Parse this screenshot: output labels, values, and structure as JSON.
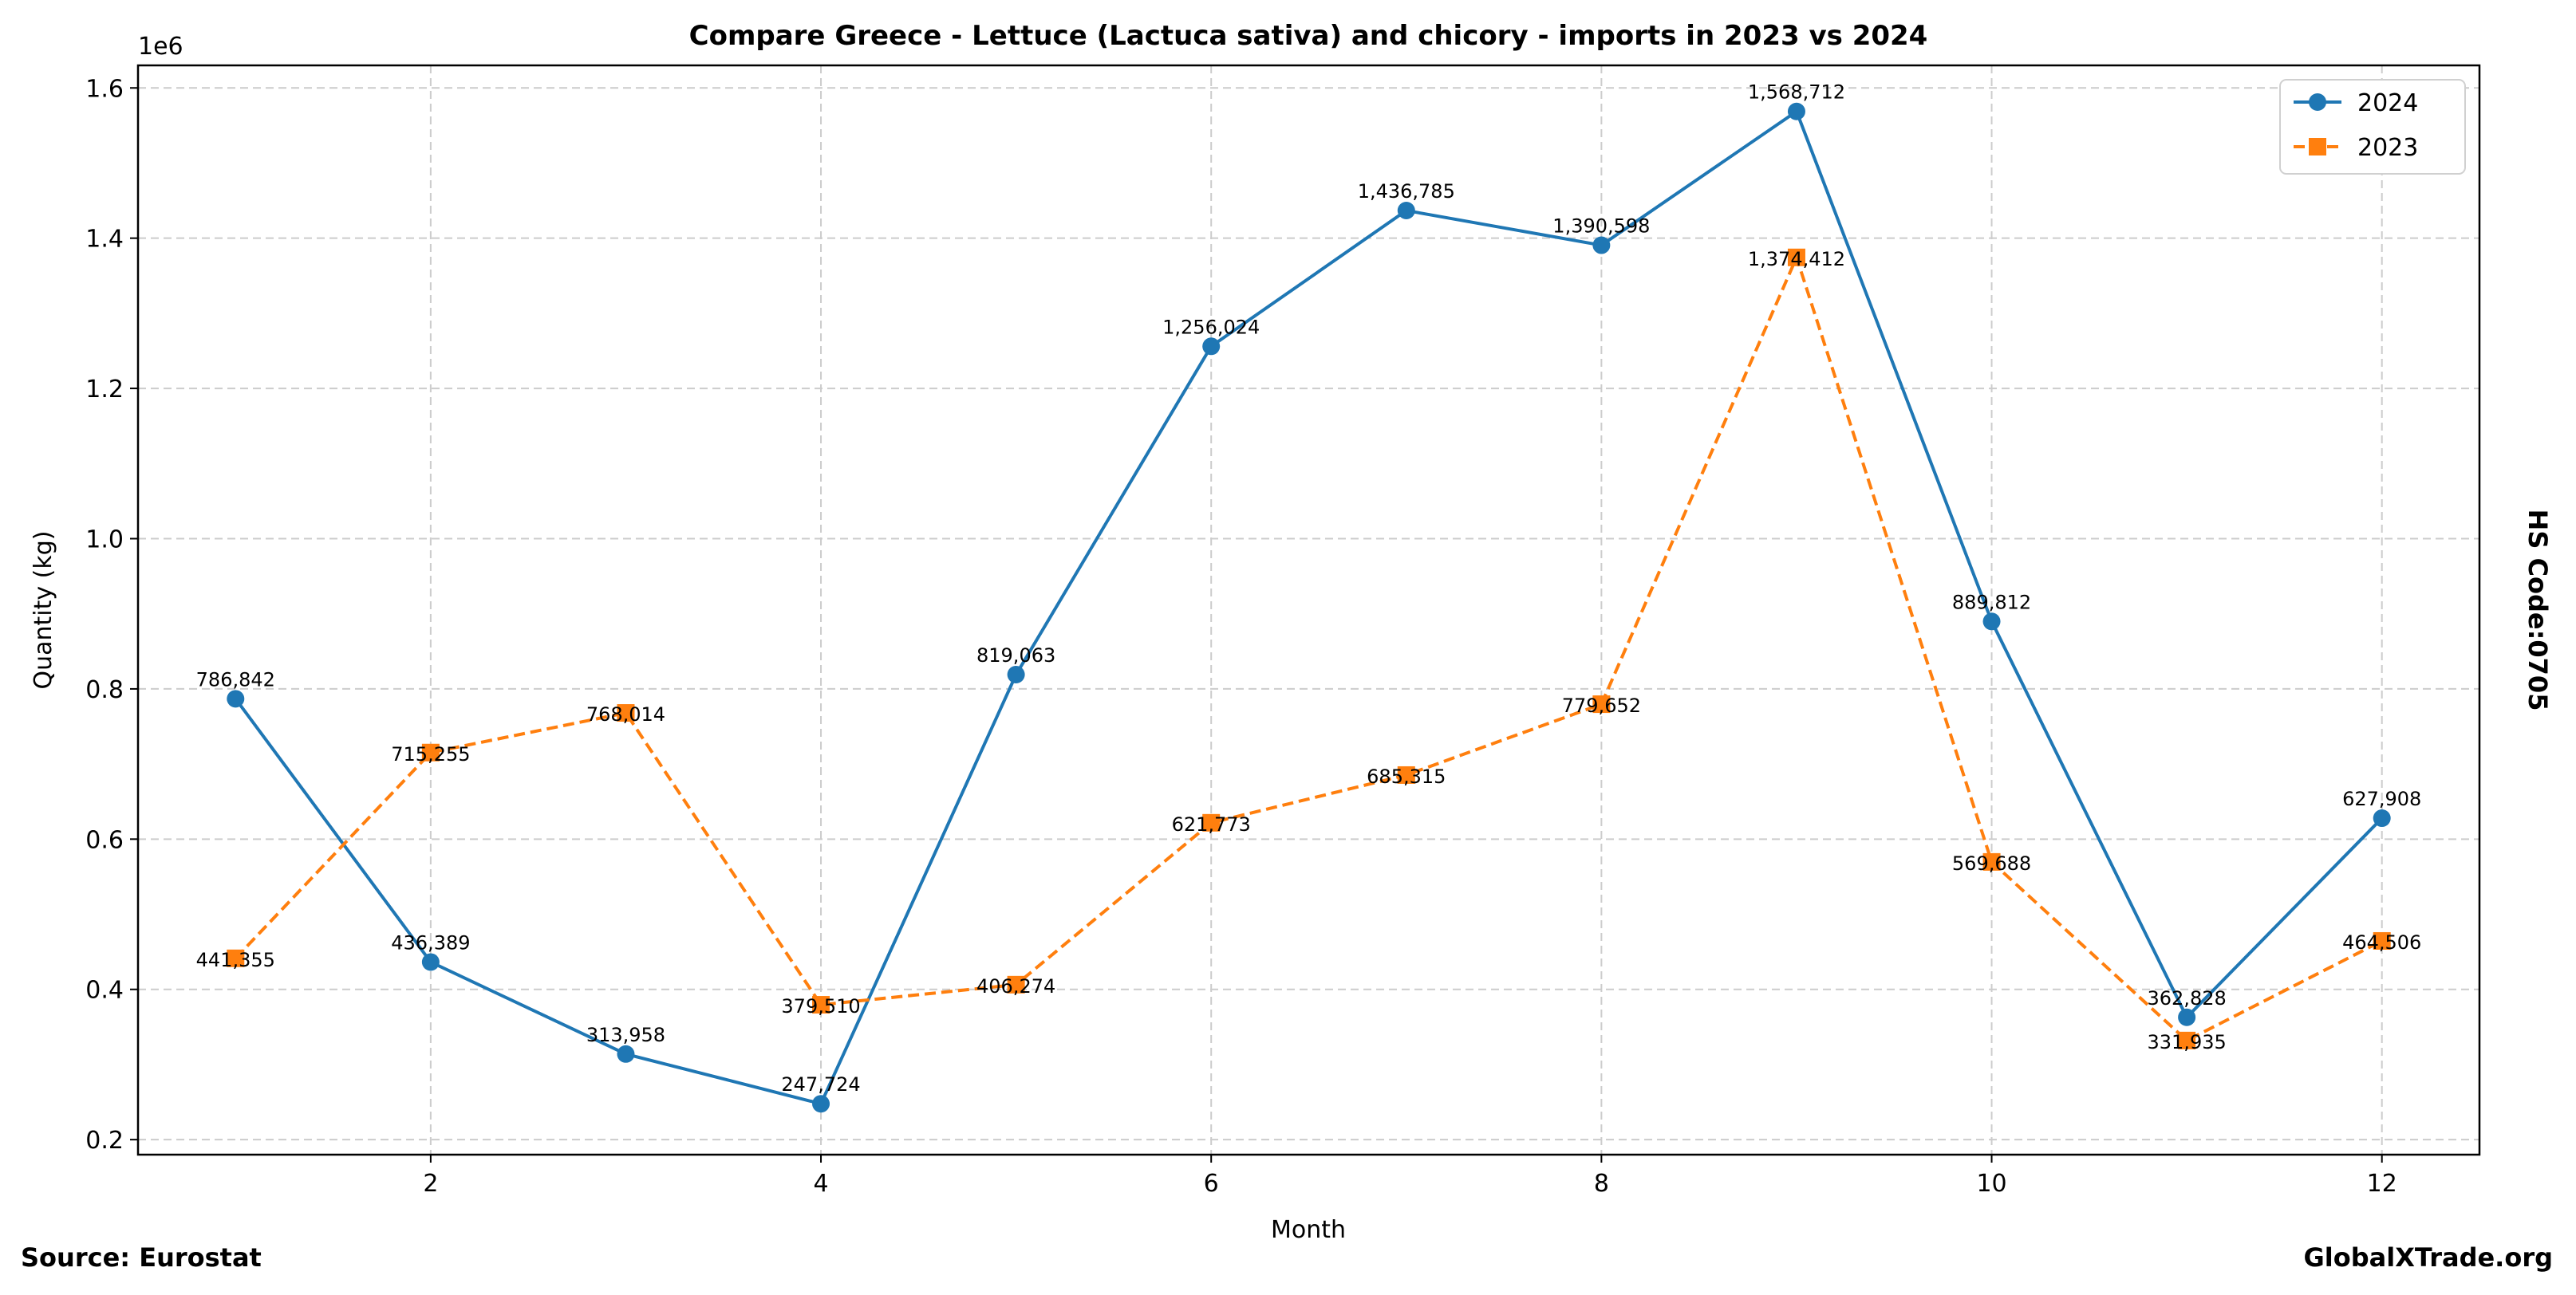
{
  "chart_data": {
    "type": "line",
    "title": "Compare Greece - Lettuce (Lactuca sativa) and chicory - imports in 2023 vs 2024",
    "xlabel": "Month",
    "ylabel": "Quantity (kg)",
    "y_offset_label": "1e6",
    "x": [
      1,
      2,
      3,
      4,
      5,
      6,
      7,
      8,
      9,
      10,
      11,
      12
    ],
    "xlim": [
      0.5,
      12.5
    ],
    "ylim": [
      180000,
      1630000
    ],
    "xticks": [
      2,
      4,
      6,
      8,
      10,
      12
    ],
    "xtick_labels": [
      "2",
      "4",
      "6",
      "8",
      "10",
      "12"
    ],
    "yticks": [
      200000,
      400000,
      600000,
      800000,
      1000000,
      1200000,
      1400000,
      1600000
    ],
    "ytick_labels": [
      "0.2",
      "0.4",
      "0.6",
      "0.8",
      "1.0",
      "1.2",
      "1.4",
      "1.6"
    ],
    "grid": true,
    "legend_position": "top-right",
    "series": [
      {
        "name": "2024",
        "color": "#1f77b4",
        "marker": "circle",
        "linestyle": "solid",
        "values": [
          786842,
          436389,
          313958,
          247724,
          819063,
          1256024,
          1436785,
          1390598,
          1568712,
          889812,
          362828,
          627908
        ],
        "labels": [
          "786,842",
          "436,389",
          "313,958",
          "247,724",
          "819,063",
          "1,256,024",
          "1,436,785",
          "1,390,598",
          "1,568,712",
          "889,812",
          "362,828",
          "627,908"
        ]
      },
      {
        "name": "2023",
        "color": "#ff7f0e",
        "marker": "square",
        "linestyle": "dashed",
        "values": [
          441355,
          715255,
          768014,
          379510,
          406274,
          621773,
          685315,
          779652,
          1374412,
          569688,
          331935,
          464506
        ],
        "labels": [
          "441,355",
          "715,255",
          "768,014",
          "379,510",
          "406,274",
          "621,773",
          "685,315",
          "779,652",
          "1,374,412",
          "569,688",
          "331,935",
          "464,506"
        ]
      }
    ]
  },
  "side_label": "HS Code:0705",
  "source": "Source: Eurostat",
  "watermark": "GlobalXTrade.org"
}
